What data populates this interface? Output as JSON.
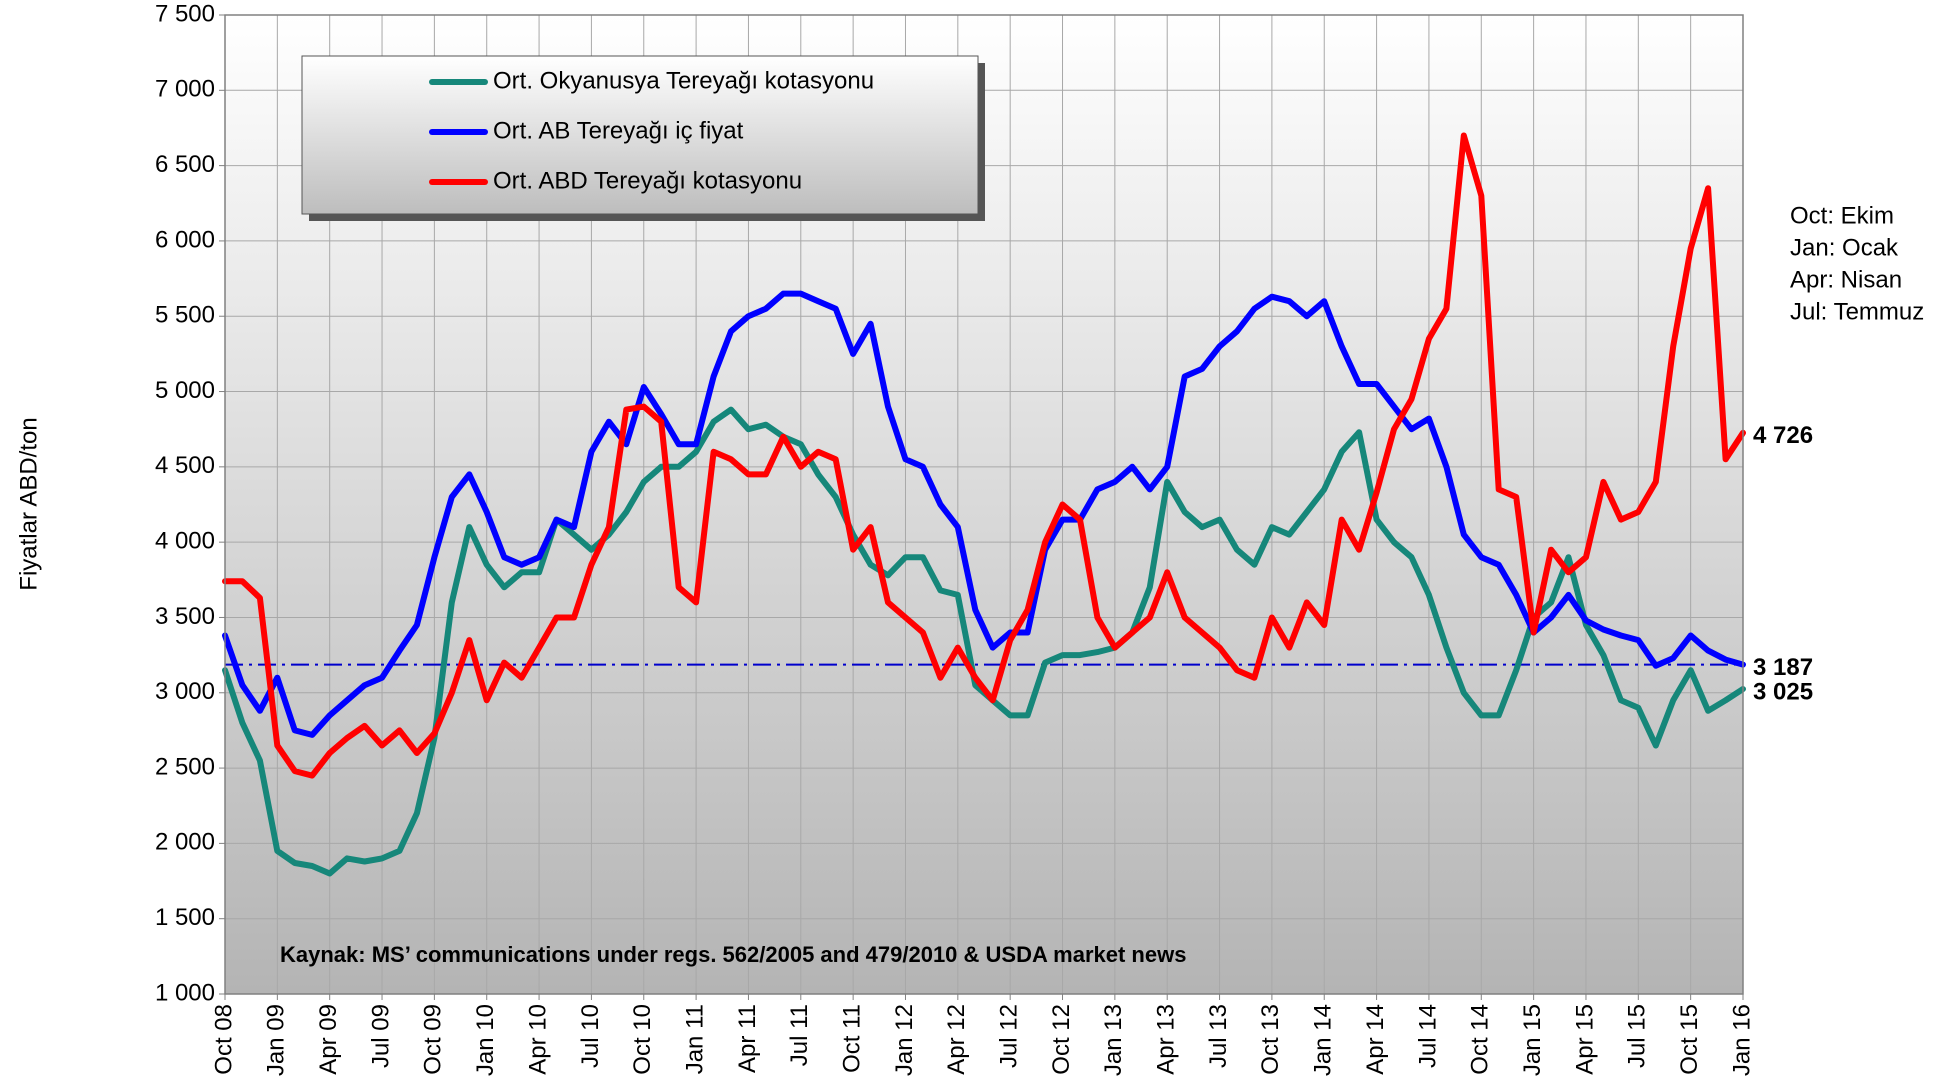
{
  "chart_data": {
    "type": "line",
    "y_label": "Fiyatlar  ABD/ton",
    "source": "Kaynak: MS’ communications under regs. 562/2005 and 479/2010 & USDA market news",
    "notes": [
      "Oct: Ekim",
      "Jan: Ocak",
      "Apr: Nisan",
      "Jul: Temmuz"
    ],
    "categories": [
      "Oct 08",
      null,
      null,
      "Jan 09",
      null,
      null,
      "Apr 09",
      null,
      null,
      "Jul 09",
      null,
      null,
      "Oct 09",
      null,
      null,
      "Jan 10",
      null,
      null,
      "Apr 10",
      null,
      null,
      "Jul 10",
      null,
      null,
      "Oct 10",
      null,
      null,
      "Jan 11",
      null,
      null,
      "Apr 11",
      null,
      null,
      "Jul 11",
      null,
      null,
      "Oct 11",
      null,
      null,
      "Jan 12",
      null,
      null,
      "Apr 12",
      null,
      null,
      "Jul 12",
      null,
      null,
      "Oct 12",
      null,
      null,
      "Jan 13",
      null,
      null,
      "Apr 13",
      null,
      null,
      "Jul 13",
      null,
      null,
      "Oct 13",
      null,
      null,
      "Jan 14",
      null,
      null,
      "Apr 14",
      null,
      null,
      "Jul 14",
      null,
      null,
      "Oct 14",
      null,
      null,
      "Jan 15",
      null,
      null,
      "Apr 15",
      null,
      null,
      "Jul 15",
      null,
      null,
      "Oct 15",
      null,
      null,
      "Jan 16"
    ],
    "series": [
      {
        "name": "Ort. Okyanusya Tereyağı kotasyonu",
        "color": "#16877a",
        "end_label": "3 025",
        "end_label_color": "#2e9a5c",
        "values": [
          3150,
          2800,
          2550,
          1950,
          1870,
          1850,
          1800,
          1900,
          1880,
          1900,
          1950,
          2200,
          2700,
          3600,
          4100,
          3850,
          3700,
          3800,
          3800,
          4150,
          4050,
          3950,
          4050,
          4200,
          4400,
          4500,
          4500,
          4600,
          4800,
          4880,
          4750,
          4780,
          4700,
          4650,
          4450,
          4300,
          4050,
          3850,
          3780,
          3900,
          3900,
          3680,
          3650,
          3050,
          2950,
          2850,
          2850,
          3200,
          3250,
          3250,
          3270,
          3300,
          3400,
          3700,
          4400,
          4200,
          4100,
          4150,
          3950,
          3850,
          4100,
          4050,
          4200,
          4350,
          4600,
          4730,
          4150,
          4000,
          3900,
          3650,
          3300,
          3000,
          2850,
          2850,
          3150,
          3500,
          3600,
          3900,
          3450,
          3250,
          2950,
          2900,
          2650,
          2950,
          3150,
          2880,
          2950,
          3025
        ]
      },
      {
        "name": "Ort. AB Tereyağı iç fiyat",
        "color": "#0000ff",
        "end_label": "3 187",
        "end_label_color": "#0000ff",
        "values": [
          3380,
          3050,
          2880,
          3100,
          2750,
          2720,
          2850,
          2950,
          3050,
          3100,
          3280,
          3450,
          3900,
          4300,
          4450,
          4200,
          3900,
          3850,
          3900,
          4150,
          4100,
          4600,
          4800,
          4650,
          5030,
          4850,
          4650,
          4650,
          5100,
          5400,
          5500,
          5550,
          5650,
          5650,
          5600,
          5550,
          5250,
          5450,
          4900,
          4550,
          4500,
          4250,
          4100,
          3550,
          3300,
          3400,
          3400,
          3950,
          4150,
          4150,
          4350,
          4400,
          4500,
          4350,
          4500,
          5100,
          5150,
          5300,
          5400,
          5550,
          5630,
          5600,
          5500,
          5600,
          5300,
          5050,
          5050,
          4900,
          4750,
          4820,
          4500,
          4050,
          3900,
          3850,
          3650,
          3400,
          3500,
          3650,
          3480,
          3420,
          3380,
          3350,
          3180,
          3230,
          3380,
          3280,
          3220,
          3187
        ]
      },
      {
        "name": "Ort. ABD Tereyağı kotasyonu",
        "color": "#ff0000",
        "end_label": "4 726",
        "end_label_color": "#ff0000",
        "values": [
          3740,
          3740,
          3630,
          2650,
          2480,
          2450,
          2600,
          2700,
          2780,
          2650,
          2750,
          2600,
          2730,
          3000,
          3350,
          2950,
          3200,
          3100,
          3300,
          3500,
          3500,
          3850,
          4100,
          4880,
          4900,
          4800,
          3700,
          3600,
          4600,
          4550,
          4450,
          4450,
          4700,
          4500,
          4600,
          4550,
          3950,
          4100,
          3600,
          3500,
          3400,
          3100,
          3300,
          3100,
          2950,
          3350,
          3550,
          4000,
          4250,
          4150,
          3500,
          3300,
          3400,
          3500,
          3800,
          3500,
          3400,
          3300,
          3150,
          3100,
          3500,
          3300,
          3600,
          3450,
          4150,
          3950,
          4330,
          4750,
          4950,
          5350,
          5550,
          6700,
          6300,
          4350,
          4300,
          3400,
          3950,
          3800,
          3900,
          4400,
          4150,
          4200,
          4400,
          5300,
          5950,
          6350,
          4550,
          4726
        ]
      }
    ],
    "hline": 3187,
    "hline_color": "#0000cc",
    "ylim": [
      1000,
      7500
    ],
    "yticks": [
      {
        "value": 1000,
        "label": "1 000"
      },
      {
        "value": 1500,
        "label": "1 500"
      },
      {
        "value": 2000,
        "label": "2 000"
      },
      {
        "value": 2500,
        "label": "2 500"
      },
      {
        "value": 3000,
        "label": "3 000"
      },
      {
        "value": 3500,
        "label": "3 500"
      },
      {
        "value": 4000,
        "label": "4 000"
      },
      {
        "value": 4500,
        "label": "4 500"
      },
      {
        "value": 5000,
        "label": "5 000"
      },
      {
        "value": 5500,
        "label": "5 500"
      },
      {
        "value": 6000,
        "label": "6 000"
      },
      {
        "value": 6500,
        "label": "6 500"
      },
      {
        "value": 7000,
        "label": "7 000"
      },
      {
        "value": 7500,
        "label": "7 500"
      }
    ],
    "grid": true
  }
}
